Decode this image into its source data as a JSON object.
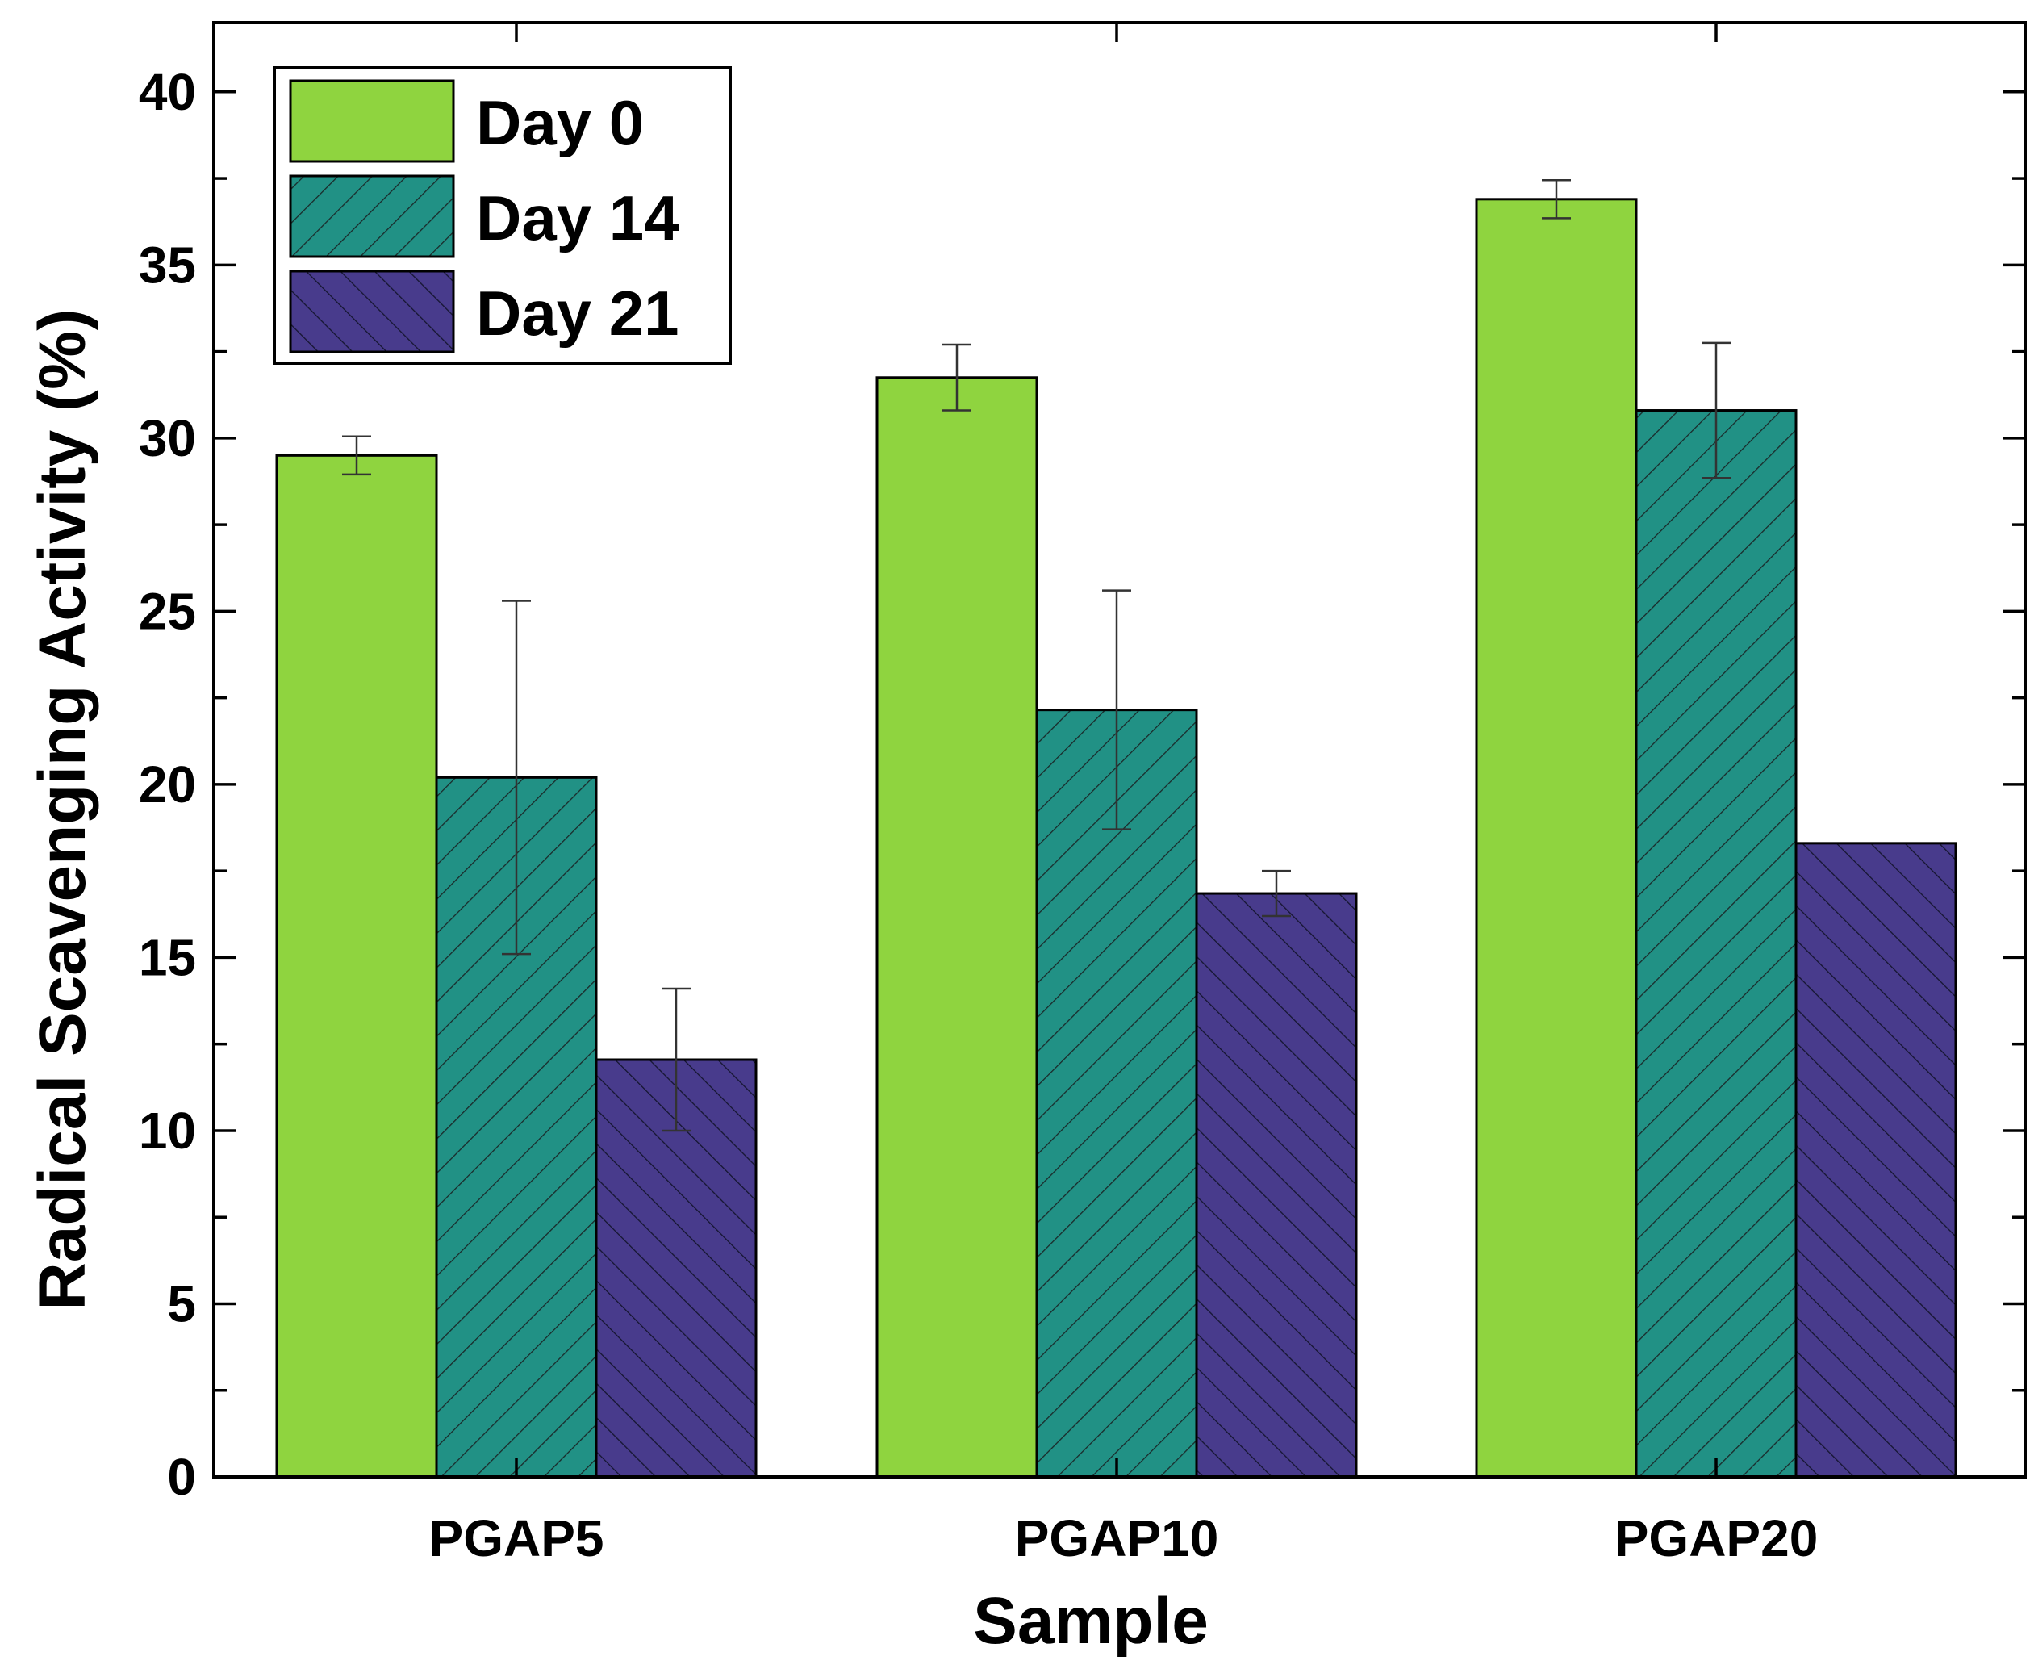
{
  "chart_data": {
    "type": "bar",
    "title": "",
    "xlabel": "Sample",
    "ylabel": "Radical Scavenging Activity (%)",
    "ylim": [
      0,
      42
    ],
    "yticks": [
      0,
      5,
      10,
      15,
      20,
      25,
      30,
      35,
      40
    ],
    "grid": false,
    "legend_position": "top-left",
    "categories": [
      "PGAP5",
      "PGAP10",
      "PGAP20"
    ],
    "series": [
      {
        "name": "Day 0",
        "color": "#8fd43f",
        "pattern": "solid",
        "values": [
          29.5,
          31.75,
          36.9
        ],
        "errors": [
          0.55,
          0.95,
          0.55
        ]
      },
      {
        "name": "Day 14",
        "color": "#219185",
        "pattern": "forward-hatch",
        "values": [
          20.2,
          22.15,
          30.8
        ],
        "errors": [
          5.1,
          3.45,
          1.95
        ]
      },
      {
        "name": "Day 21",
        "color": "#483b8c",
        "pattern": "back-hatch",
        "values": [
          12.05,
          16.85,
          18.3
        ],
        "errors": [
          2.05,
          0.65,
          0
        ]
      }
    ]
  }
}
